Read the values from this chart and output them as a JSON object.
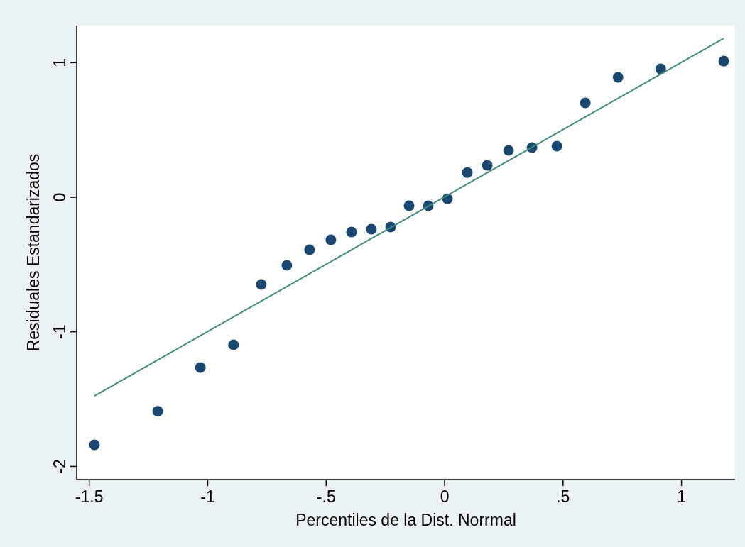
{
  "chart_data": {
    "type": "scatter",
    "xlabel": "Percentiles de la Dist. Norrmal",
    "ylabel": "Residuales Estandarizados",
    "xlim": [
      -1.553,
      1.226
    ],
    "ylim": [
      -2.098,
      1.276
    ],
    "xticks": [
      -1.5,
      -1,
      {
        "value": -0.5,
        "label": "-.5"
      },
      0,
      {
        "value": 0.5,
        "label": ".5"
      },
      1
    ],
    "yticks": [
      -2,
      -1,
      0,
      1
    ],
    "grid": false,
    "series": [
      {
        "marker": "circle",
        "color": "#1a476f",
        "x": [
          -1.478,
          -1.211,
          -1.031,
          -0.891,
          -0.774,
          -0.666,
          -0.57,
          -0.48,
          -0.393,
          -0.309,
          -0.228,
          -0.15,
          -0.069,
          0.012,
          0.096,
          0.18,
          0.27,
          0.369,
          0.474,
          0.594,
          0.732,
          0.912,
          1.178
        ],
        "values": [
          -1.84,
          -1.59,
          -1.265,
          -1.096,
          -0.648,
          -0.506,
          -0.39,
          -0.316,
          -0.258,
          -0.237,
          -0.221,
          -0.063,
          -0.063,
          -0.011,
          0.184,
          0.237,
          0.348,
          0.369,
          0.38,
          0.701,
          0.891,
          0.954,
          1.012
        ]
      },
      {
        "type": "line",
        "color": "#3f8a78",
        "x": [
          -1.478,
          1.178
        ],
        "values": [
          -1.476,
          1.181
        ],
        "line_style": "solid"
      }
    ]
  }
}
